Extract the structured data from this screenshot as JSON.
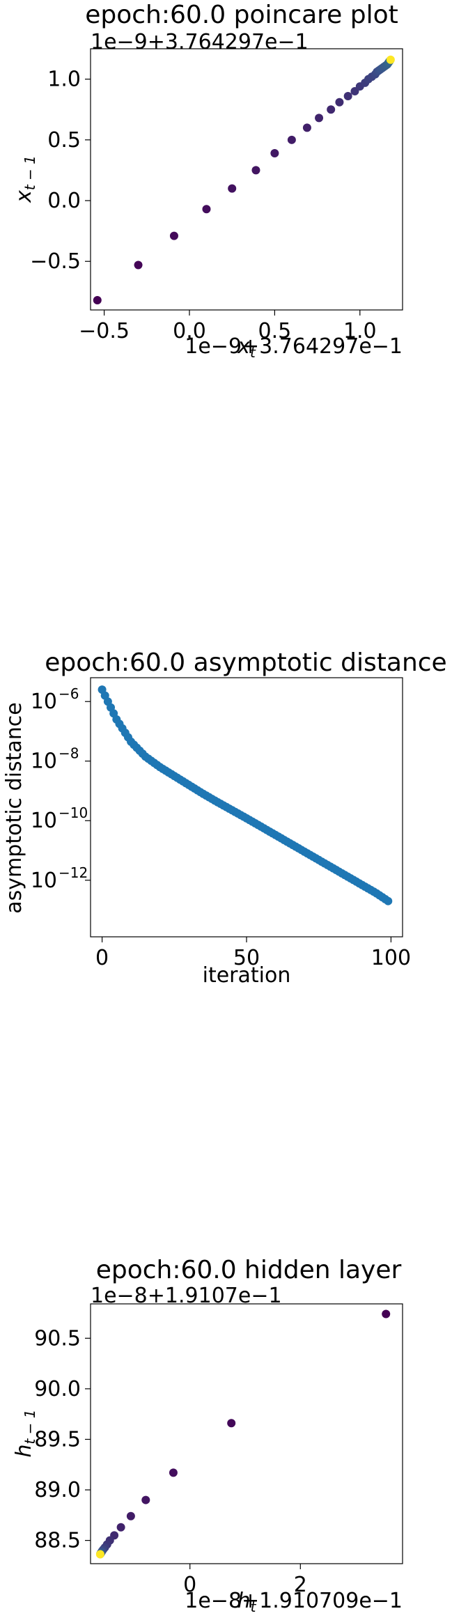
{
  "chart_data": [
    {
      "type": "scatter",
      "title": "epoch:60.0 poincare plot",
      "xlabel": "x_t",
      "ylabel": "x_{t-1}",
      "x_offset_label": "1e−9+3.764297e−1",
      "y_offset_label": "1e−9+3.764297e−1",
      "xlim": [
        -0.58,
        1.25
      ],
      "ylim": [
        -0.9,
        1.25
      ],
      "xticks": [
        -0.5,
        0.0,
        0.5,
        1.0
      ],
      "xtick_labels": [
        "−0.5",
        "0.0",
        "0.5",
        "1.0"
      ],
      "yticks": [
        -0.5,
        0.0,
        0.5,
        1.0
      ],
      "ytick_labels": [
        "−0.5",
        "0.0",
        "0.5",
        "1.0"
      ],
      "colormap": "viridis",
      "points": [
        {
          "x": -0.54,
          "y": -0.82
        },
        {
          "x": -0.3,
          "y": -0.53
        },
        {
          "x": -0.09,
          "y": -0.29
        },
        {
          "x": 0.1,
          "y": -0.07
        },
        {
          "x": 0.25,
          "y": 0.1
        },
        {
          "x": 0.39,
          "y": 0.25
        },
        {
          "x": 0.5,
          "y": 0.39
        },
        {
          "x": 0.6,
          "y": 0.5
        },
        {
          "x": 0.69,
          "y": 0.6
        },
        {
          "x": 0.76,
          "y": 0.68
        },
        {
          "x": 0.83,
          "y": 0.75
        },
        {
          "x": 0.88,
          "y": 0.81
        },
        {
          "x": 0.93,
          "y": 0.86
        },
        {
          "x": 0.97,
          "y": 0.9
        },
        {
          "x": 1.0,
          "y": 0.94
        },
        {
          "x": 1.03,
          "y": 0.97
        },
        {
          "x": 1.05,
          "y": 1.0
        },
        {
          "x": 1.07,
          "y": 1.02
        },
        {
          "x": 1.09,
          "y": 1.04
        },
        {
          "x": 1.1,
          "y": 1.06
        },
        {
          "x": 1.11,
          "y": 1.07
        },
        {
          "x": 1.12,
          "y": 1.08
        },
        {
          "x": 1.13,
          "y": 1.09
        },
        {
          "x": 1.14,
          "y": 1.1
        },
        {
          "x": 1.15,
          "y": 1.11
        },
        {
          "x": 1.16,
          "y": 1.12
        },
        {
          "x": 1.165,
          "y": 1.13
        },
        {
          "x": 1.17,
          "y": 1.14
        },
        {
          "x": 1.175,
          "y": 1.15
        },
        {
          "x": 1.18,
          "y": 1.16
        }
      ]
    },
    {
      "type": "scatter",
      "title": "epoch:60.0 asymptotic distance",
      "xlabel": "iteration",
      "ylabel": "asymptotic distance",
      "scale_y": "log",
      "xlim": [
        -4,
        104
      ],
      "ylim_log10": [
        -13.9,
        -5.2
      ],
      "xticks": [
        0,
        50,
        100
      ],
      "xtick_labels": [
        "0",
        "50",
        "100"
      ],
      "yticks_log10": [
        -12,
        -10,
        -8,
        -6
      ],
      "ytick_labels": [
        "10",
        "10",
        "10",
        "10"
      ],
      "ytick_exponents": [
        "−12",
        "−10",
        "−8",
        "−6"
      ],
      "color": "#1f77b4",
      "series": [
        {
          "x": [
            0,
            5,
            10,
            15,
            20,
            25,
            30,
            35,
            40,
            45,
            50,
            55,
            60,
            65,
            70,
            75,
            80,
            85,
            90,
            95,
            99
          ],
          "y_log10": [
            -5.6,
            -6.6,
            -7.35,
            -7.85,
            -8.2,
            -8.5,
            -8.8,
            -9.1,
            -9.38,
            -9.65,
            -9.92,
            -10.2,
            -10.48,
            -10.76,
            -11.04,
            -11.32,
            -11.6,
            -11.88,
            -12.16,
            -12.44,
            -12.7
          ]
        }
      ]
    },
    {
      "type": "scatter",
      "title": "epoch:60.0 hidden layer",
      "xlabel": "h_t",
      "ylabel": "h_{t-1}",
      "x_offset_label": "1e−8+1.910709e−1",
      "y_offset_label": "1e−8+1.9107e−1",
      "xlim": [
        -1.8,
        3.85
      ],
      "ylim": [
        88.27,
        90.84
      ],
      "xticks": [
        0,
        2
      ],
      "xtick_labels": [
        "0",
        "2"
      ],
      "yticks": [
        88.5,
        89.0,
        89.5,
        90.0,
        90.5
      ],
      "ytick_labels": [
        "88.5",
        "89.0",
        "89.5",
        "90.0",
        "90.5"
      ],
      "colormap": "viridis",
      "points": [
        {
          "x": 3.55,
          "y": 90.74
        },
        {
          "x": 0.75,
          "y": 89.66
        },
        {
          "x": -0.3,
          "y": 89.17
        },
        {
          "x": -0.8,
          "y": 88.9
        },
        {
          "x": -1.07,
          "y": 88.74
        },
        {
          "x": -1.25,
          "y": 88.63
        },
        {
          "x": -1.37,
          "y": 88.55
        },
        {
          "x": -1.45,
          "y": 88.5
        },
        {
          "x": -1.5,
          "y": 88.46
        },
        {
          "x": -1.54,
          "y": 88.43
        },
        {
          "x": -1.57,
          "y": 88.41
        },
        {
          "x": -1.59,
          "y": 88.395
        },
        {
          "x": -1.6,
          "y": 88.385
        },
        {
          "x": -1.61,
          "y": 88.378
        },
        {
          "x": -1.615,
          "y": 88.372
        },
        {
          "x": -1.62,
          "y": 88.368
        },
        {
          "x": -1.623,
          "y": 88.365
        },
        {
          "x": -1.625,
          "y": 88.363
        }
      ]
    }
  ]
}
